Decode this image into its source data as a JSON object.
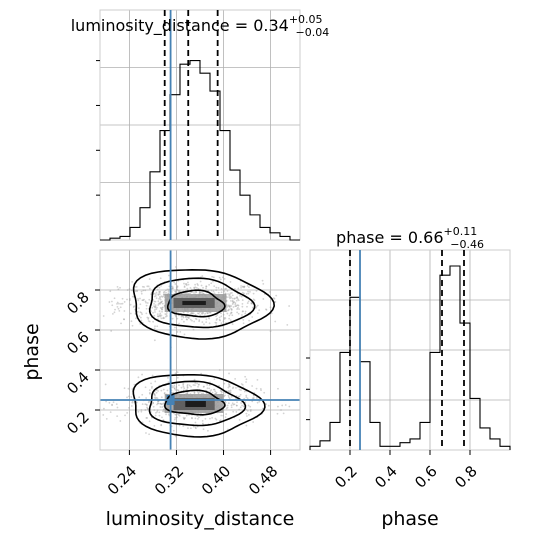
{
  "chart_data": {
    "type": "corner",
    "parameters": [
      "luminosity_distance",
      "phase"
    ],
    "truths": {
      "luminosity_distance": 0.31,
      "phase": 0.25
    },
    "truth_color": "#4682b4",
    "panels": {
      "luminosity_distance": {
        "title_name": "luminosity_distance",
        "title_value": "0.34",
        "title_sup": "+0.05",
        "title_sub": "−0.04",
        "xlim": [
          0.19,
          0.53
        ],
        "quantiles": [
          0.3,
          0.34,
          0.39
        ],
        "bin_edges": [
          0.19,
          0.207,
          0.224,
          0.241,
          0.258,
          0.275,
          0.292,
          0.309,
          0.326,
          0.343,
          0.36,
          0.377,
          0.394,
          0.411,
          0.428,
          0.445,
          0.462,
          0.479,
          0.496,
          0.513,
          0.53
        ],
        "counts": [
          0.0,
          0.01,
          0.02,
          0.07,
          0.18,
          0.38,
          0.61,
          0.81,
          0.98,
          1.0,
          0.93,
          0.83,
          0.61,
          0.39,
          0.25,
          0.14,
          0.07,
          0.04,
          0.02,
          0.0
        ]
      },
      "phase": {
        "title_name": "phase",
        "title_value": "0.66",
        "title_sup": "+0.11",
        "title_sub": "−0.46",
        "xlim": [
          0.0,
          1.0
        ],
        "quantiles": [
          0.2,
          0.66,
          0.77
        ],
        "bin_edges": [
          0.0,
          0.05,
          0.1,
          0.15,
          0.2,
          0.25,
          0.3,
          0.35,
          0.4,
          0.45,
          0.5,
          0.55,
          0.6,
          0.65,
          0.7,
          0.75,
          0.8,
          0.85,
          0.9,
          0.95,
          1.0
        ],
        "counts": [
          0.02,
          0.05,
          0.15,
          0.53,
          0.83,
          0.48,
          0.15,
          0.02,
          0.02,
          0.04,
          0.06,
          0.15,
          0.53,
          0.95,
          1.0,
          0.69,
          0.28,
          0.12,
          0.06,
          0.02
        ]
      }
    },
    "joint": {
      "xlim": [
        0.19,
        0.53
      ],
      "ylim": [
        0.0,
        1.0
      ],
      "clusters": [
        {
          "mu": [
            0.345,
            0.735
          ],
          "sigma": [
            0.048,
            0.055
          ],
          "weight": 1.0,
          "core_hist": [
            [
              0.33,
              0.725,
              0.37,
              0.745,
              "#111111"
            ],
            [
              0.315,
              0.71,
              0.385,
              0.76,
              "#555555"
            ],
            [
              0.3,
              0.69,
              0.405,
              0.78,
              "#9a9a9a"
            ]
          ],
          "contours": [
            [
              0.305,
              0.665,
              0.4,
              0.795
            ],
            [
              0.27,
              0.61,
              0.445,
              0.855
            ],
            [
              0.24,
              0.56,
              0.475,
              0.905
            ]
          ]
        },
        {
          "mu": [
            0.345,
            0.24
          ],
          "sigma": [
            0.045,
            0.055
          ],
          "weight": 0.75,
          "core_hist": [
            [
              0.335,
              0.215,
              0.37,
              0.245,
              "#111111"
            ],
            [
              0.315,
              0.2,
              0.385,
              0.26,
              "#555555"
            ],
            [
              0.3,
              0.185,
              0.4,
              0.28,
              "#9a9a9a"
            ]
          ],
          "contours": [
            [
              0.3,
              0.175,
              0.4,
              0.295
            ],
            [
              0.27,
              0.12,
              0.43,
              0.34
            ],
            [
              0.24,
              0.07,
              0.46,
              0.38
            ]
          ]
        }
      ],
      "density_markers": [
        {
          "x": 0.31,
          "y": 0.25,
          "color": "#4682b4"
        }
      ]
    },
    "ticks": {
      "luminosity_distance": [
        "0.24",
        "0.32",
        "0.40",
        "0.48"
      ],
      "phase": [
        "0.2",
        "0.4",
        "0.6",
        "0.8"
      ]
    },
    "axis_labels": {
      "x_left": "luminosity_distance",
      "x_right": "phase",
      "y_left": "phase"
    },
    "grid": true
  }
}
